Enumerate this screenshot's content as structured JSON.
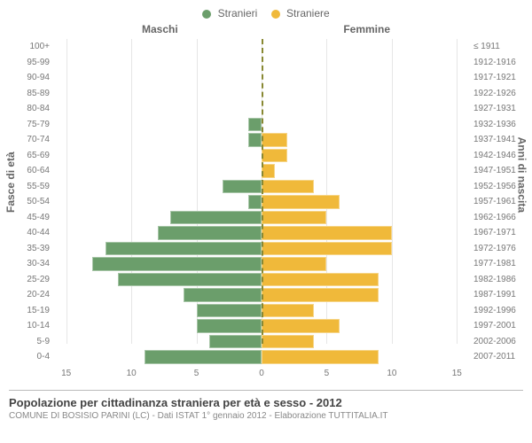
{
  "legend": {
    "male": {
      "label": "Stranieri",
      "color": "#6b9e6b"
    },
    "female": {
      "label": "Straniere",
      "color": "#f0b93a"
    }
  },
  "headers": {
    "male": "Maschi",
    "female": "Femmine"
  },
  "axis": {
    "left_label": "Fasce di età",
    "right_label": "Anni di nascita",
    "xlim": 16,
    "xticks_left": [
      15,
      10,
      5,
      0
    ],
    "xticks_right": [
      0,
      5,
      10,
      15
    ]
  },
  "colors": {
    "background": "#ffffff",
    "grid": "#e6e6e6",
    "text": "#666666",
    "centerline": "#888833"
  },
  "rows": [
    {
      "age": "100+",
      "birth": "≤ 1911",
      "m": 0,
      "f": 0
    },
    {
      "age": "95-99",
      "birth": "1912-1916",
      "m": 0,
      "f": 0
    },
    {
      "age": "90-94",
      "birth": "1917-1921",
      "m": 0,
      "f": 0
    },
    {
      "age": "85-89",
      "birth": "1922-1926",
      "m": 0,
      "f": 0
    },
    {
      "age": "80-84",
      "birth": "1927-1931",
      "m": 0,
      "f": 0
    },
    {
      "age": "75-79",
      "birth": "1932-1936",
      "m": 1,
      "f": 0
    },
    {
      "age": "70-74",
      "birth": "1937-1941",
      "m": 1,
      "f": 2
    },
    {
      "age": "65-69",
      "birth": "1942-1946",
      "m": 0,
      "f": 2
    },
    {
      "age": "60-64",
      "birth": "1947-1951",
      "m": 0,
      "f": 1
    },
    {
      "age": "55-59",
      "birth": "1952-1956",
      "m": 3,
      "f": 4
    },
    {
      "age": "50-54",
      "birth": "1957-1961",
      "m": 1,
      "f": 6
    },
    {
      "age": "45-49",
      "birth": "1962-1966",
      "m": 7,
      "f": 5
    },
    {
      "age": "40-44",
      "birth": "1967-1971",
      "m": 8,
      "f": 10
    },
    {
      "age": "35-39",
      "birth": "1972-1976",
      "m": 12,
      "f": 10
    },
    {
      "age": "30-34",
      "birth": "1977-1981",
      "m": 13,
      "f": 5
    },
    {
      "age": "25-29",
      "birth": "1982-1986",
      "m": 11,
      "f": 9
    },
    {
      "age": "20-24",
      "birth": "1987-1991",
      "m": 6,
      "f": 9
    },
    {
      "age": "15-19",
      "birth": "1992-1996",
      "m": 5,
      "f": 4
    },
    {
      "age": "10-14",
      "birth": "1997-2001",
      "m": 5,
      "f": 6
    },
    {
      "age": "5-9",
      "birth": "2002-2006",
      "m": 4,
      "f": 4
    },
    {
      "age": "0-4",
      "birth": "2007-2011",
      "m": 9,
      "f": 9
    }
  ],
  "footer": {
    "line1": "Popolazione per cittadinanza straniera per età e sesso - 2012",
    "line2": "COMUNE DI BOSISIO PARINI (LC) - Dati ISTAT 1° gennaio 2012 - Elaborazione TUTTITALIA.IT"
  }
}
